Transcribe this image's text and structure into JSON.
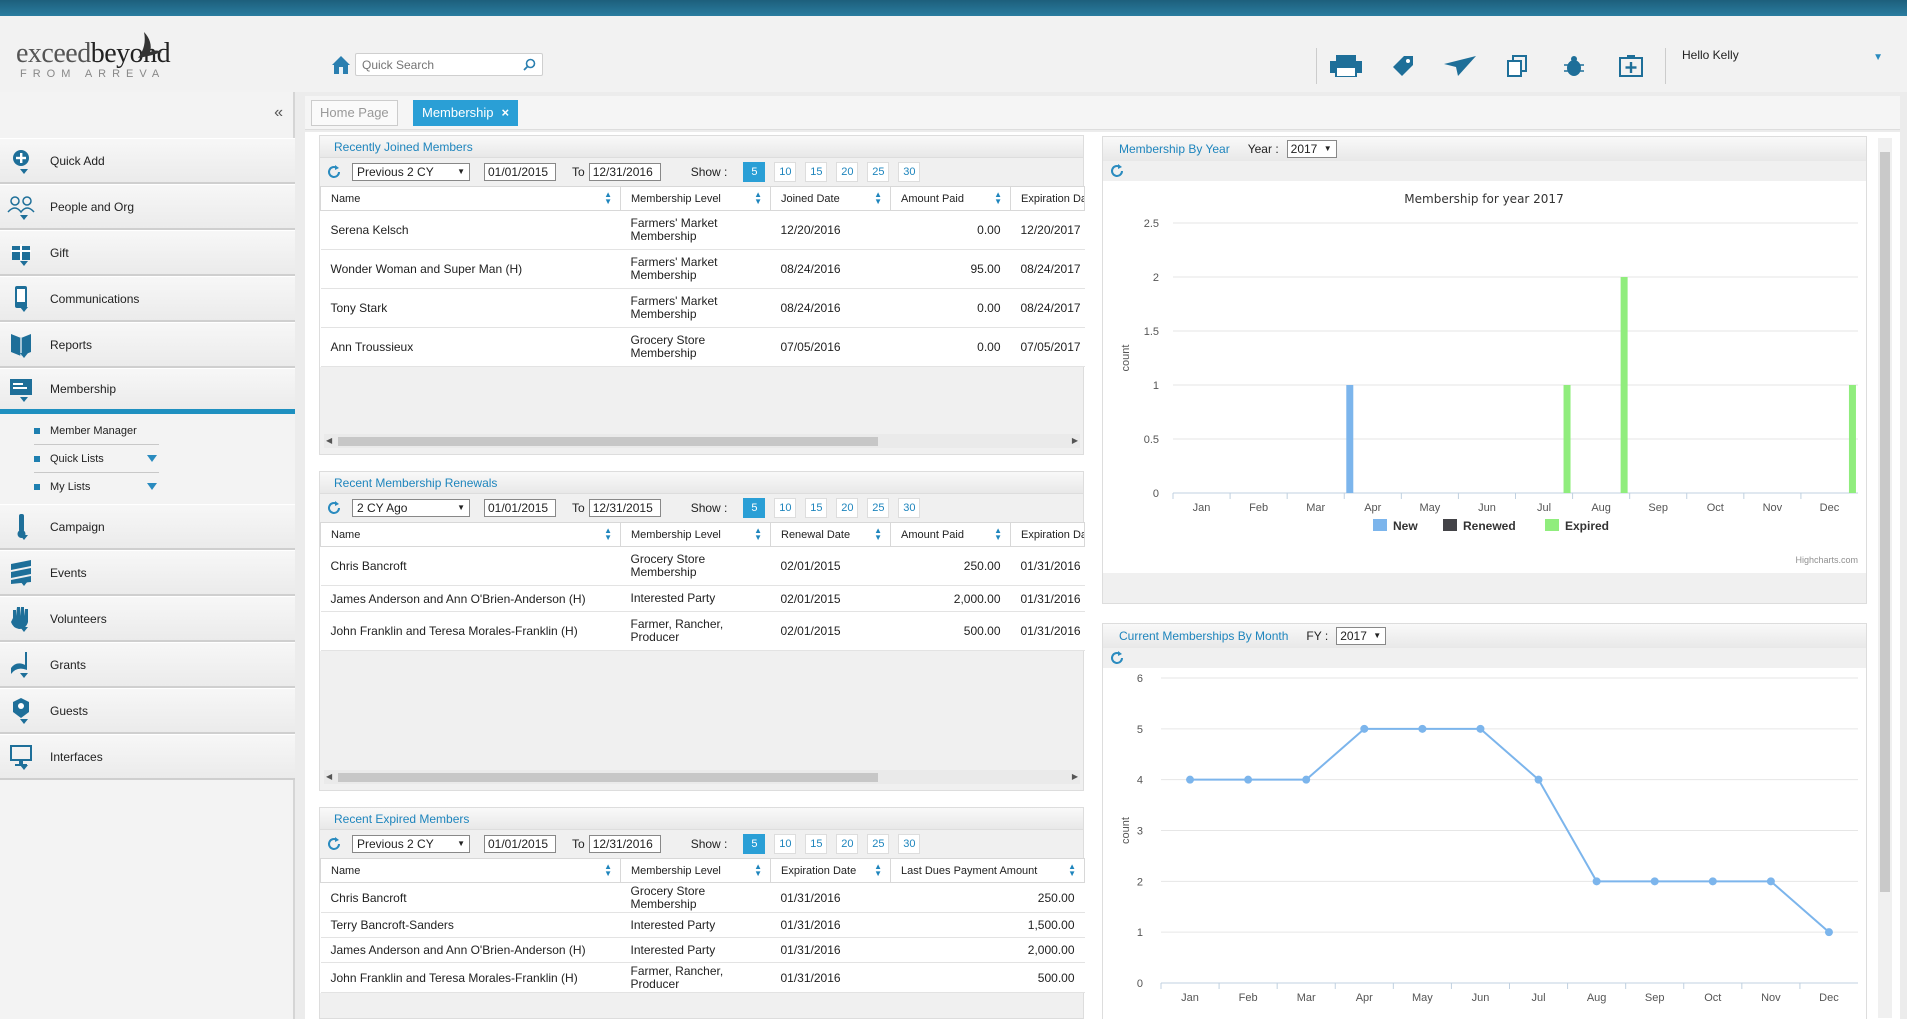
{
  "header": {
    "logo_text_a": "exceed",
    "logo_text_b": "beyond",
    "logo_sub": "FROM ARREVA",
    "search_placeholder": "Quick Search",
    "greeting": "Hello Kelly"
  },
  "sidebar": {
    "collapse_glyph": "«",
    "items": [
      {
        "label": "Quick Add",
        "icon": "plus-circle-icon"
      },
      {
        "label": "People and Org",
        "icon": "people-icon"
      },
      {
        "label": "Gift",
        "icon": "gift-icon"
      },
      {
        "label": "Communications",
        "icon": "phone-icon"
      },
      {
        "label": "Reports",
        "icon": "book-icon"
      },
      {
        "label": "Membership",
        "icon": "membership-card-icon"
      },
      {
        "label": "Campaign",
        "icon": "thermometer-icon"
      },
      {
        "label": "Events",
        "icon": "events-icon"
      },
      {
        "label": "Volunteers",
        "icon": "hand-icon"
      },
      {
        "label": "Grants",
        "icon": "grants-icon"
      },
      {
        "label": "Guests",
        "icon": "guests-icon"
      },
      {
        "label": "Interfaces",
        "icon": "monitor-icon"
      }
    ],
    "submenu": [
      "Member Manager",
      "Quick Lists",
      "My Lists"
    ]
  },
  "tabs": [
    {
      "label": "Home Page"
    },
    {
      "label": "Membership",
      "close": "×"
    }
  ],
  "show_label": "Show :",
  "to_label": "To",
  "page_sizes": [
    "5",
    "10",
    "15",
    "20",
    "25",
    "30"
  ],
  "joined": {
    "title": "Recently Joined Members",
    "range": "Previous 2 CY",
    "from": "01/01/2015",
    "to": "12/31/2016",
    "columns": [
      "Name",
      "Membership Level",
      "Joined Date",
      "Amount Paid",
      "Expiration Da"
    ],
    "rows": [
      [
        "Serena Kelsch",
        "Farmers' Market Membership",
        "12/20/2016",
        "0.00",
        "12/20/2017"
      ],
      [
        "Wonder Woman and Super Man (H)",
        "Farmers' Market Membership",
        "08/24/2016",
        "95.00",
        "08/24/2017"
      ],
      [
        "Tony Stark",
        "Farmers' Market Membership",
        "08/24/2016",
        "0.00",
        "08/24/2017"
      ],
      [
        "Ann Troussieux",
        "Grocery Store Membership",
        "07/05/2016",
        "0.00",
        "07/05/2017"
      ]
    ]
  },
  "renewals": {
    "title": "Recent Membership Renewals",
    "range": "2 CY Ago",
    "from": "01/01/2015",
    "to": "12/31/2015",
    "columns": [
      "Name",
      "Membership Level",
      "Renewal Date",
      "Amount Paid",
      "Expiration Da"
    ],
    "rows": [
      [
        "Chris Bancroft",
        "Grocery Store Membership",
        "02/01/2015",
        "250.00",
        "01/31/2016"
      ],
      [
        "James Anderson and Ann O'Brien-Anderson (H)",
        "Interested Party",
        "02/01/2015",
        "2,000.00",
        "01/31/2016"
      ],
      [
        "John Franklin and Teresa Morales-Franklin (H)",
        "Farmer, Rancher, Producer",
        "02/01/2015",
        "500.00",
        "01/31/2016"
      ]
    ]
  },
  "expired": {
    "title": "Recent Expired Members",
    "range": "Previous 2 CY",
    "from": "01/01/2015",
    "to": "12/31/2016",
    "columns": [
      "Name",
      "Membership Level",
      "Expiration Date",
      "Last Dues Payment Amount"
    ],
    "rows": [
      [
        "Chris Bancroft",
        "Grocery Store Membership",
        "01/31/2016",
        "250.00"
      ],
      [
        "Terry Bancroft-Sanders",
        "Interested Party",
        "01/31/2016",
        "1,500.00"
      ],
      [
        "James Anderson and Ann O'Brien-Anderson (H)",
        "Interested Party",
        "01/31/2016",
        "2,000.00"
      ],
      [
        "John Franklin and Teresa Morales-Franklin (H)",
        "Farmer, Rancher, Producer",
        "01/31/2016",
        "500.00"
      ]
    ]
  },
  "year_panel": {
    "title": "Membership By Year",
    "year_label": "Year :",
    "year": "2017"
  },
  "month_panel": {
    "title": "Current Memberships By Month",
    "fy_label": "FY :",
    "fy": "2017"
  },
  "chart_data": [
    {
      "type": "bar",
      "title": "Membership for year 2017",
      "ylabel": "count",
      "ylim": [
        0,
        2.5
      ],
      "yticks": [
        "0",
        "0.5",
        "1",
        "1.5",
        "2",
        "2.5"
      ],
      "categories": [
        "Jan",
        "Feb",
        "Mar",
        "Apr",
        "May",
        "Jun",
        "Jul",
        "Aug",
        "Sep",
        "Oct",
        "Nov",
        "Dec"
      ],
      "series": [
        {
          "name": "New",
          "color": "#7cb5ec",
          "values": [
            0,
            0,
            0,
            1,
            0,
            0,
            0,
            0,
            0,
            0,
            0,
            0
          ]
        },
        {
          "name": "Renewed",
          "color": "#434348",
          "values": [
            0,
            0,
            0,
            0,
            0,
            0,
            0,
            0,
            0,
            0,
            0,
            0
          ]
        },
        {
          "name": "Expired",
          "color": "#90ed7d",
          "values": [
            0,
            0,
            0,
            0,
            0,
            0,
            1,
            2,
            0,
            0,
            0,
            1
          ]
        }
      ],
      "credit": "Highcharts.com",
      "legend": "bottom-center"
    },
    {
      "type": "line",
      "ylabel": "count",
      "ylim": [
        0,
        6
      ],
      "yticks": [
        "0",
        "1",
        "2",
        "3",
        "4",
        "5",
        "6"
      ],
      "categories": [
        "Jan",
        "Feb",
        "Mar",
        "Apr",
        "May",
        "Jun",
        "Jul",
        "Aug",
        "Sep",
        "Oct",
        "Nov",
        "Dec"
      ],
      "series": [
        {
          "color": "#7cb5ec",
          "values": [
            4,
            4,
            4,
            5,
            5,
            5,
            4,
            2,
            2,
            2,
            2,
            1
          ]
        }
      ]
    }
  ]
}
